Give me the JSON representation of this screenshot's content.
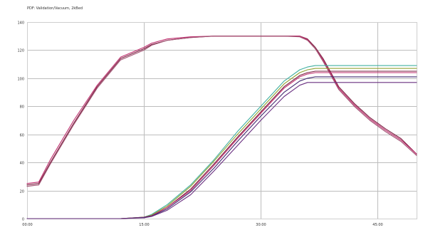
{
  "chart_data": {
    "type": "line",
    "title": "PDF: Validation/Vacuum, 2kBed",
    "xlabel": "",
    "ylabel": "",
    "x_ticks": [
      "00:00",
      "15:00",
      "30:00",
      "45:00"
    ],
    "x_tick_values": [
      0,
      15,
      30,
      45
    ],
    "y_ticks": [
      "0",
      "20",
      "40",
      "60",
      "80",
      "100",
      "120",
      "140"
    ],
    "xlim": [
      0,
      50
    ],
    "ylim": [
      0,
      140
    ],
    "grid": true,
    "legend": "none",
    "series": [
      {
        "color": "#7a2040",
        "x": [
          0,
          1.5,
          3,
          6,
          9,
          12,
          15,
          16,
          18,
          21,
          24,
          27,
          30,
          33,
          35,
          36,
          37,
          38,
          39,
          40,
          42,
          44,
          46,
          48,
          50
        ],
        "y": [
          24,
          25,
          40,
          68,
          94,
          114,
          121,
          124,
          127,
          129,
          130,
          130,
          130,
          130,
          130,
          128,
          122,
          114,
          104,
          94,
          82,
          72,
          64,
          57,
          46
        ]
      },
      {
        "color": "#c03070",
        "x": [
          0,
          1.5,
          3,
          6,
          9,
          12,
          15,
          16,
          18,
          21,
          24,
          27,
          30,
          33,
          35,
          36,
          37,
          38,
          39,
          40,
          42,
          44,
          46,
          48,
          50
        ],
        "y": [
          25,
          26,
          42,
          70,
          95,
          115,
          122,
          125,
          128,
          129.5,
          130,
          130,
          130,
          130,
          130,
          127.5,
          121,
          113,
          103,
          93,
          81,
          71,
          63,
          56,
          46
        ]
      },
      {
        "color": "#a05070",
        "x": [
          0,
          1.5,
          3,
          6,
          9,
          12,
          15,
          16,
          18,
          21,
          24,
          27,
          30,
          33,
          35,
          36,
          37,
          38,
          39,
          40,
          42,
          44,
          46,
          48,
          50
        ],
        "y": [
          23,
          24,
          39,
          67,
          93,
          113,
          120,
          123.5,
          127,
          129,
          130,
          130,
          130,
          130,
          129.5,
          127,
          121,
          112,
          102,
          92,
          80,
          70,
          62,
          55,
          45
        ]
      },
      {
        "color": "#40b0a0",
        "x": [
          0,
          12,
          15,
          16,
          18,
          21,
          24,
          27,
          30,
          33,
          35,
          36,
          37,
          38,
          50
        ],
        "y": [
          0,
          0,
          1,
          3,
          10,
          24,
          42,
          62,
          80,
          98,
          106,
          108,
          109,
          109,
          109
        ]
      },
      {
        "color": "#90a030",
        "x": [
          0,
          12,
          15,
          16,
          18,
          21,
          24,
          27,
          30,
          33,
          35,
          36,
          37,
          38,
          50
        ],
        "y": [
          0,
          0,
          1,
          2.5,
          9,
          23,
          41,
          60,
          78,
          96,
          104,
          106,
          107,
          107,
          107
        ]
      },
      {
        "color": "#7a2040",
        "x": [
          0,
          12,
          15,
          16,
          18,
          21,
          24,
          27,
          30,
          33,
          35,
          36,
          37,
          38,
          50
        ],
        "y": [
          0,
          0,
          1,
          2,
          8,
          21,
          39,
          58,
          76,
          94,
          102,
          104,
          105,
          105,
          105
        ]
      },
      {
        "color": "#c03070",
        "x": [
          0,
          12,
          15,
          16,
          18,
          21,
          24,
          27,
          30,
          33,
          35,
          36,
          37,
          38,
          50
        ],
        "y": [
          0,
          0,
          0.8,
          2,
          8,
          20,
          38,
          57,
          75,
          93,
          101,
          103,
          104,
          104,
          104
        ]
      },
      {
        "color": "#402a70",
        "x": [
          0,
          12,
          15,
          16,
          18,
          21,
          24,
          27,
          30,
          33,
          35,
          36,
          37,
          38,
          50
        ],
        "y": [
          0,
          0,
          0.8,
          1.8,
          7,
          19,
          36,
          55,
          73,
          90,
          98,
          100,
          101,
          101,
          101
        ]
      },
      {
        "color": "#6a3080",
        "x": [
          0,
          12,
          15,
          16,
          18,
          21,
          24,
          27,
          30,
          33,
          35,
          36,
          37,
          38,
          50
        ],
        "y": [
          0,
          0,
          0.5,
          1.5,
          6,
          17,
          34,
          52,
          70,
          87,
          95,
          97,
          97,
          97,
          97
        ]
      }
    ]
  }
}
